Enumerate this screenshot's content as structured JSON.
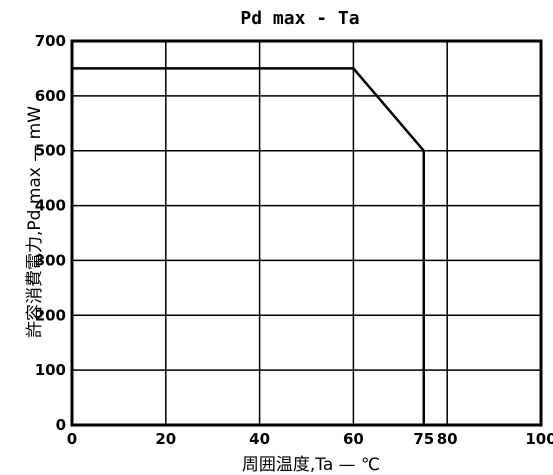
{
  "chart_data": {
    "type": "line",
    "title": "Pd max - Ta",
    "xlabel": "周囲温度,Ta — ℃",
    "ylabel": "許容消費電力,Pd max — mW",
    "xlim": [
      0,
      100
    ],
    "ylim": [
      0,
      700
    ],
    "xticks": [
      0,
      20,
      40,
      60,
      75,
      80,
      100
    ],
    "yticks": [
      0,
      100,
      200,
      300,
      400,
      500,
      600,
      700
    ],
    "x_gridlines": [
      0,
      20,
      40,
      60,
      80,
      100
    ],
    "y_gridlines": [
      0,
      100,
      200,
      300,
      400,
      500,
      600,
      700
    ],
    "grid": true,
    "series": [
      {
        "name": "",
        "x": [
          0,
          60,
          75,
          75
        ],
        "y": [
          650,
          650,
          500,
          0
        ]
      }
    ]
  }
}
